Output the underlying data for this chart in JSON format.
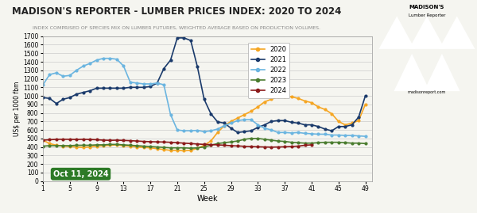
{
  "title": "MADISON'S REPORTER - LUMBER PRICES INDEX: 2020 TO 2024",
  "subtitle": "INDEX COMPRISED OF SPECIES MIX ON LUMBER FUTURES, WEIGHTED AVERAGE BASED ON PRODUCTION VOLUMES.",
  "xlabel": "Week",
  "ylabel": "US$ per 1000 fbm",
  "ylim": [
    0,
    1700
  ],
  "xlim": [
    1,
    50
  ],
  "yticks": [
    0,
    100,
    200,
    300,
    400,
    500,
    600,
    700,
    800,
    900,
    1000,
    1100,
    1200,
    1300,
    1400,
    1500,
    1600,
    1700
  ],
  "xticks": [
    1,
    5,
    9,
    13,
    17,
    21,
    25,
    29,
    33,
    37,
    41,
    45,
    49
  ],
  "date_label": "Oct 11, 2024",
  "bg_color": "#f5f5f0",
  "grid_color": "#cccccc",
  "series": {
    "2020": {
      "color": "#f5a623",
      "weeks": [
        1,
        2,
        3,
        4,
        5,
        6,
        7,
        8,
        9,
        10,
        11,
        12,
        13,
        14,
        15,
        16,
        17,
        18,
        19,
        20,
        21,
        22,
        23,
        24,
        25,
        26,
        27,
        28,
        29,
        30,
        31,
        32,
        33,
        34,
        35,
        36,
        37,
        38,
        39,
        40,
        41,
        42,
        43,
        44,
        45,
        46,
        47,
        48,
        49,
        50
      ],
      "values": [
        480,
        440,
        420,
        410,
        405,
        400,
        395,
        400,
        410,
        415,
        420,
        425,
        415,
        410,
        400,
        395,
        390,
        380,
        370,
        360,
        360,
        355,
        360,
        385,
        420,
        470,
        570,
        650,
        700,
        740,
        780,
        820,
        870,
        930,
        960,
        990,
        990,
        990,
        970,
        940,
        920,
        870,
        840,
        790,
        700,
        660,
        680,
        710,
        900,
        null
      ]
    },
    "2021": {
      "color": "#1a3a6b",
      "weeks": [
        1,
        2,
        3,
        4,
        5,
        6,
        7,
        8,
        9,
        10,
        11,
        12,
        13,
        14,
        15,
        16,
        17,
        18,
        19,
        20,
        21,
        22,
        23,
        24,
        25,
        26,
        27,
        28,
        29,
        30,
        31,
        32,
        33,
        34,
        35,
        36,
        37,
        38,
        39,
        40,
        41,
        42,
        43,
        44,
        45,
        46,
        47,
        48,
        49,
        50
      ],
      "values": [
        980,
        970,
        910,
        960,
        980,
        1020,
        1040,
        1060,
        1090,
        1090,
        1090,
        1090,
        1090,
        1100,
        1100,
        1100,
        1110,
        1150,
        1320,
        1420,
        1680,
        1680,
        1650,
        1340,
        960,
        790,
        695,
        680,
        620,
        570,
        580,
        590,
        630,
        660,
        700,
        710,
        710,
        690,
        680,
        660,
        660,
        640,
        610,
        590,
        640,
        640,
        660,
        750,
        1000,
        null
      ]
    },
    "2022": {
      "color": "#6bb5e0",
      "weeks": [
        1,
        2,
        3,
        4,
        5,
        6,
        7,
        8,
        9,
        10,
        11,
        12,
        13,
        14,
        15,
        16,
        17,
        18,
        19,
        20,
        21,
        22,
        23,
        24,
        25,
        26,
        27,
        28,
        29,
        30,
        31,
        32,
        33,
        34,
        35,
        36,
        37,
        38,
        39,
        40,
        41,
        42,
        43,
        44,
        45,
        46,
        47,
        48,
        49,
        50
      ],
      "values": [
        1130,
        1250,
        1270,
        1230,
        1240,
        1300,
        1350,
        1380,
        1420,
        1440,
        1440,
        1430,
        1350,
        1160,
        1150,
        1140,
        1140,
        1150,
        1130,
        780,
        600,
        590,
        590,
        595,
        580,
        590,
        610,
        650,
        680,
        710,
        720,
        720,
        660,
        620,
        600,
        570,
        570,
        565,
        570,
        560,
        555,
        550,
        550,
        540,
        540,
        535,
        535,
        530,
        525,
        null
      ]
    },
    "2023": {
      "color": "#4a7c2f",
      "weeks": [
        1,
        2,
        3,
        4,
        5,
        6,
        7,
        8,
        9,
        10,
        11,
        12,
        13,
        14,
        15,
        16,
        17,
        18,
        19,
        20,
        21,
        22,
        23,
        24,
        25,
        26,
        27,
        28,
        29,
        30,
        31,
        32,
        33,
        34,
        35,
        36,
        37,
        38,
        39,
        40,
        41,
        42,
        43,
        44,
        45,
        46,
        47,
        48,
        49,
        50
      ],
      "values": [
        410,
        415,
        415,
        415,
        415,
        420,
        420,
        420,
        425,
        425,
        430,
        430,
        425,
        420,
        415,
        410,
        405,
        400,
        395,
        390,
        390,
        390,
        385,
        390,
        400,
        420,
        440,
        450,
        460,
        470,
        490,
        500,
        500,
        490,
        480,
        470,
        465,
        455,
        450,
        445,
        445,
        450,
        455,
        455,
        455,
        450,
        445,
        445,
        440,
        null
      ]
    },
    "2024": {
      "color": "#8b1a1a",
      "weeks": [
        1,
        2,
        3,
        4,
        5,
        6,
        7,
        8,
        9,
        10,
        11,
        12,
        13,
        14,
        15,
        16,
        17,
        18,
        19,
        20,
        21,
        22,
        23,
        24,
        25,
        26,
        27,
        28,
        29,
        30,
        31,
        32,
        33,
        34,
        35,
        36,
        37,
        38,
        39,
        40,
        41
      ],
      "values": [
        480,
        485,
        490,
        490,
        490,
        488,
        490,
        488,
        485,
        480,
        478,
        480,
        477,
        474,
        470,
        465,
        462,
        460,
        458,
        455,
        450,
        445,
        440,
        435,
        430,
        428,
        425,
        420,
        415,
        412,
        408,
        405,
        402,
        400,
        398,
        400,
        402,
        405,
        410,
        420,
        425
      ]
    }
  }
}
